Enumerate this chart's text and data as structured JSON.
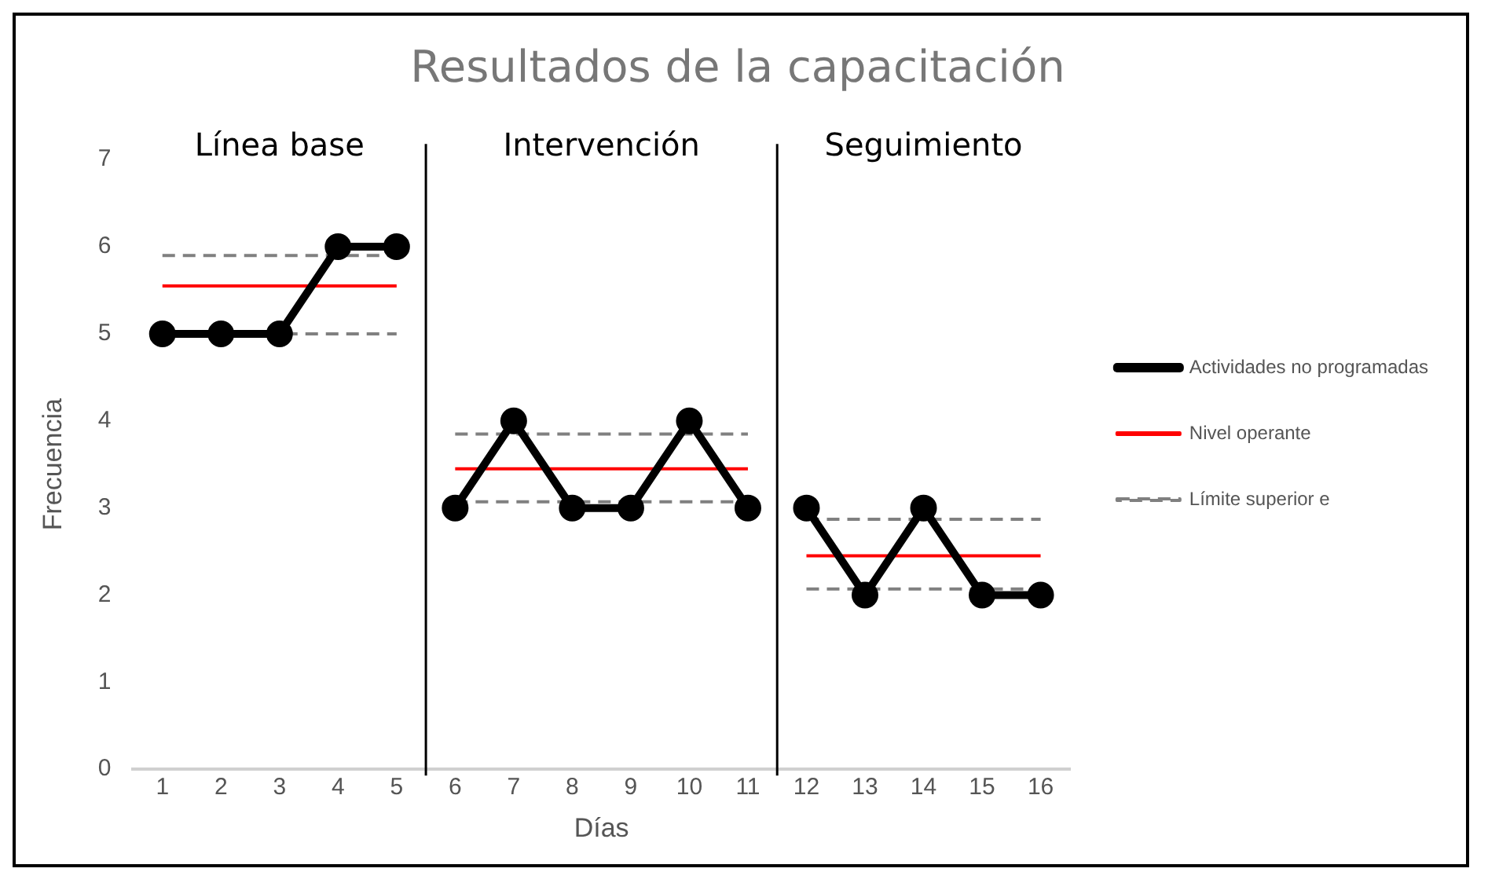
{
  "chart_data": {
    "type": "line",
    "title": "Resultados de la capacitación",
    "xlabel": "Días",
    "ylabel": "Frecuencia",
    "xlim": [
      0.5,
      16.5
    ],
    "xticks": [
      1,
      2,
      3,
      4,
      5,
      6,
      7,
      8,
      9,
      10,
      11,
      12,
      13,
      14,
      15,
      16
    ],
    "ylim": [
      0,
      7
    ],
    "yticks": [
      0,
      1,
      2,
      3,
      4,
      5,
      6,
      7
    ],
    "grid": false,
    "legend": "right",
    "series": [
      {
        "name": "Actividades no programadas",
        "color": "#000000",
        "marker": "circle",
        "line_style": "solid",
        "x": [
          1,
          2,
          3,
          4,
          5
        ],
        "values": [
          5,
          5,
          5,
          6,
          6
        ]
      },
      {
        "color": "#000000",
        "marker": "circle",
        "line_style": "solid",
        "x": [
          6,
          7,
          8,
          9,
          10,
          11
        ],
        "values": [
          3,
          4,
          3,
          3,
          4,
          3
        ]
      },
      {
        "color": "#000000",
        "marker": "circle",
        "line_style": "solid",
        "x": [
          12,
          13,
          14,
          15,
          16
        ],
        "values": [
          3,
          2,
          3,
          2,
          2
        ]
      },
      {
        "name": "Nivel operante",
        "color": "#ff0000",
        "marker": "none",
        "line_style": "solid",
        "x": [
          1,
          5
        ],
        "values": [
          5.55,
          5.55
        ]
      },
      {
        "color": "#ff0000",
        "marker": "none",
        "line_style": "solid",
        "x": [
          6,
          11
        ],
        "values": [
          3.45,
          3.45
        ]
      },
      {
        "color": "#ff0000",
        "marker": "none",
        "line_style": "solid",
        "x": [
          12,
          16
        ],
        "values": [
          2.45,
          2.45
        ]
      },
      {
        "name": "Límite superior e",
        "color": "#808080",
        "marker": "none",
        "line_style": "dashed",
        "x": [
          1,
          5
        ],
        "values": [
          5.9,
          5.9
        ]
      },
      {
        "color": "#808080",
        "marker": "none",
        "line_style": "dashed",
        "x": [
          1,
          5
        ],
        "values": [
          5,
          5
        ]
      },
      {
        "color": "#808080",
        "marker": "none",
        "line_style": "dashed",
        "x": [
          6,
          11
        ],
        "values": [
          3.85,
          3.85
        ]
      },
      {
        "color": "#808080",
        "marker": "none",
        "line_style": "dashed",
        "x": [
          6,
          11
        ],
        "values": [
          3.07,
          3.07
        ]
      },
      {
        "color": "#808080",
        "marker": "none",
        "line_style": "dashed",
        "x": [
          12,
          16
        ],
        "values": [
          2.87,
          2.87
        ]
      },
      {
        "color": "#808080",
        "marker": "none",
        "line_style": "dashed",
        "x": [
          12,
          16
        ],
        "values": [
          2.07,
          2.07
        ]
      }
    ],
    "ref_lines": [
      {
        "axis": "x",
        "value": 5.5,
        "color": "#000000"
      },
      {
        "axis": "x",
        "value": 11.5,
        "color": "#000000"
      }
    ],
    "annotations": [
      "Línea base",
      "Intervención",
      "Seguimiento"
    ]
  }
}
